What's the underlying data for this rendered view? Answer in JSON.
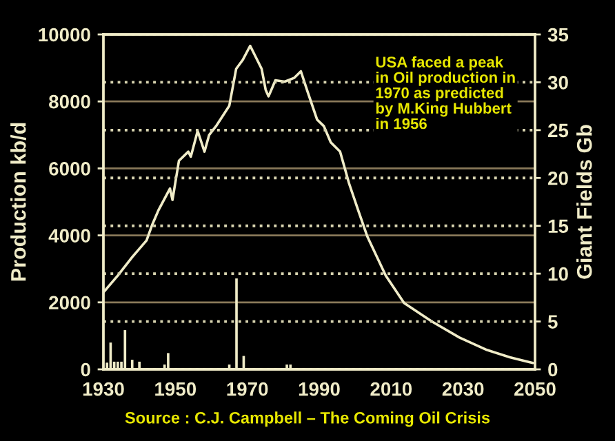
{
  "chart_data": {
    "type": "line",
    "xlabel": null,
    "ylabel": "Production kb/d",
    "y2label": "Giant Fields Gb",
    "xlim": [
      1930,
      2050
    ],
    "xticks": [
      1930,
      1950,
      1970,
      1990,
      2010,
      2030,
      2050
    ],
    "ylim": [
      0,
      10000
    ],
    "yticks": [
      0,
      2000,
      4000,
      6000,
      8000,
      10000
    ],
    "y2lim": [
      0,
      35
    ],
    "y2ticks": [
      0,
      5,
      10,
      15,
      20,
      25,
      30,
      35
    ],
    "grid": "y",
    "series": [
      {
        "type": "bar",
        "axis": "y2",
        "color": "#f0ecc8",
        "x": [
          1931,
          1932,
          1933,
          1934,
          1935,
          1936,
          1938,
          1940,
          1947,
          1948,
          1965,
          1967,
          1969,
          1981,
          1982
        ],
        "values": [
          0.7,
          2.8,
          0.8,
          0.8,
          0.8,
          4.1,
          1.0,
          0.8,
          0.5,
          1.7,
          0.5,
          9.5,
          1.4,
          0.5,
          0.5
        ]
      },
      {
        "axis": "y",
        "color": "#f0ecc8",
        "x": [
          1930,
          1934,
          1938,
          1942,
          1943.5,
          1945.3,
          1948.5,
          1949.2,
          1951,
          1953.6,
          1954.3,
          1956.2,
          1958.1,
          1959.4,
          1961.3,
          1965,
          1966.9,
          1968.8,
          1970.8,
          1974,
          1975.1,
          1975.9,
          1976.7,
          1977.8,
          1980.4,
          1983,
          1984.9,
          1986.8,
          1989.4,
          1991.3,
          1993.2,
          1995.8,
          1998.3,
          2000.9,
          2003.4,
          2008.5,
          2013.6,
          2021.3,
          2029,
          2036.6,
          2043,
          2049.4
        ],
        "values": [
          2300,
          2800,
          3350,
          3850,
          4300,
          4750,
          5400,
          5060,
          6230,
          6500,
          6350,
          7120,
          6500,
          7000,
          7260,
          7870,
          8970,
          9250,
          9660,
          8970,
          8350,
          8150,
          8350,
          8630,
          8590,
          8700,
          8900,
          8280,
          7460,
          7260,
          6780,
          6500,
          5550,
          4730,
          3960,
          2800,
          1980,
          1430,
          950,
          580,
          360,
          190
        ]
      }
    ],
    "annotations": [
      "USA faced a peak\nin Oil production in\n1970 as predicted\nby M.King Hubbert\nin 1956",
      "Source : C.J. Campbell – The Coming Oil Crisis"
    ]
  }
}
